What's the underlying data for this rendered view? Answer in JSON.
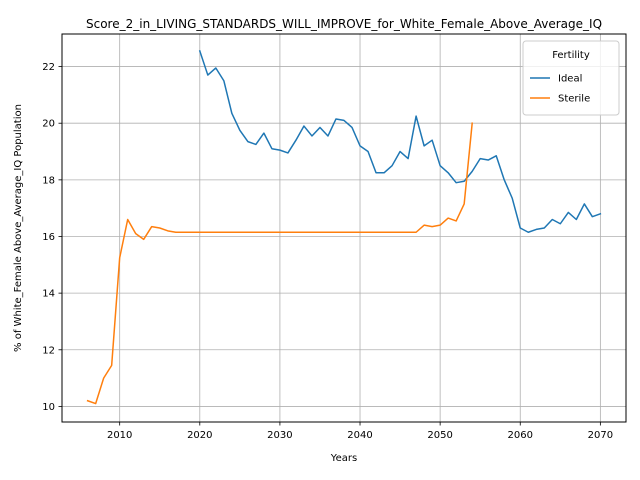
{
  "chart_data": {
    "type": "line",
    "title": "Score_2_in_LIVING_STANDARDS_WILL_IMPROVE_for_White_Female_Above_Average_IQ",
    "xlabel": "Years",
    "ylabel": "% of White_Female Above_Average_IQ Population",
    "xlim": [
      2002.8,
      2073.2
    ],
    "ylim": [
      9.45,
      23.15
    ],
    "grid": true,
    "xticks": [
      2010,
      2020,
      2030,
      2040,
      2050,
      2060,
      2070
    ],
    "xtick_labels": [
      "2010",
      "2020",
      "2030",
      "2040",
      "2050",
      "2060",
      "2070"
    ],
    "yticks": [
      10,
      12,
      14,
      16,
      18,
      20,
      22
    ],
    "ytick_labels": [
      "10",
      "12",
      "14",
      "16",
      "18",
      "20",
      "22"
    ],
    "legend": {
      "title": "Fertility",
      "placement": "upper right",
      "entries": [
        "Ideal",
        "Sterile"
      ]
    },
    "series": [
      {
        "name": "Ideal",
        "color": "#1f77b4",
        "x": [
          2020,
          2021,
          2022,
          2023,
          2024,
          2025,
          2026,
          2027,
          2028,
          2029,
          2030,
          2031,
          2032,
          2033,
          2034,
          2035,
          2036,
          2037,
          2038,
          2039,
          2040,
          2041,
          2042,
          2043,
          2044,
          2045,
          2046,
          2047,
          2048,
          2049,
          2050,
          2051,
          2052,
          2053,
          2054,
          2055,
          2056,
          2057,
          2058,
          2059,
          2060,
          2061,
          2062,
          2063,
          2064,
          2065,
          2066,
          2067,
          2068,
          2069,
          2070
        ],
        "values": [
          22.55,
          21.7,
          21.95,
          21.5,
          20.35,
          19.75,
          19.35,
          19.25,
          19.65,
          19.1,
          19.05,
          18.95,
          19.4,
          19.9,
          19.55,
          19.85,
          19.55,
          20.15,
          20.1,
          19.85,
          19.2,
          19.0,
          18.25,
          18.25,
          18.5,
          19.0,
          18.75,
          20.25,
          19.2,
          19.4,
          18.5,
          18.25,
          17.9,
          17.95,
          18.3,
          18.75,
          18.7,
          18.85,
          18.0,
          17.35,
          16.3,
          16.15,
          16.25,
          16.3,
          16.6,
          16.45,
          16.85,
          16.6,
          17.15,
          16.7,
          16.8
        ]
      },
      {
        "name": "Sterile",
        "color": "#ff7f0e",
        "x": [
          2006,
          2007,
          2008,
          2009,
          2010,
          2011,
          2012,
          2013,
          2014,
          2015,
          2016,
          2017,
          2018,
          2019,
          2020,
          2021,
          2022,
          2023,
          2024,
          2025,
          2026,
          2027,
          2028,
          2029,
          2030,
          2031,
          2032,
          2033,
          2034,
          2035,
          2036,
          2037,
          2038,
          2039,
          2040,
          2041,
          2042,
          2043,
          2044,
          2045,
          2046,
          2047,
          2048,
          2049,
          2050,
          2051,
          2052,
          2053,
          2054
        ],
        "values": [
          10.2,
          10.1,
          11.0,
          11.45,
          15.25,
          16.6,
          16.1,
          15.9,
          16.35,
          16.3,
          16.2,
          16.15,
          16.15,
          16.15,
          16.15,
          16.15,
          16.15,
          16.15,
          16.15,
          16.15,
          16.15,
          16.15,
          16.15,
          16.15,
          16.15,
          16.15,
          16.15,
          16.15,
          16.15,
          16.15,
          16.15,
          16.15,
          16.15,
          16.15,
          16.15,
          16.15,
          16.15,
          16.15,
          16.15,
          16.15,
          16.15,
          16.15,
          16.4,
          16.35,
          16.4,
          16.65,
          16.55,
          17.15,
          20.0
        ]
      }
    ]
  }
}
